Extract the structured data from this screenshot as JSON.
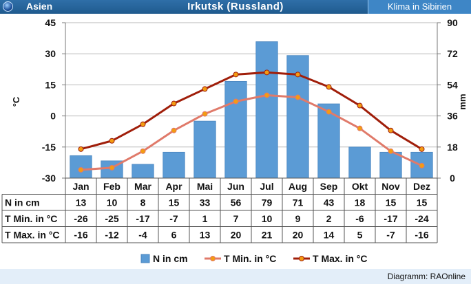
{
  "header": {
    "region": "Asien",
    "title": "Irkutsk (Russland)",
    "link": "Klima in Sibirien"
  },
  "footer": {
    "credit": "Diagramm: RAOnline"
  },
  "colors": {
    "bar": "#5b9bd5",
    "tmin": "#e07a6a",
    "tmax": "#a01e0a",
    "marker": "#f39c12"
  },
  "chart_data": {
    "type": "bar",
    "categories": [
      "Jan",
      "Feb",
      "Mar",
      "Apr",
      "Mai",
      "Jun",
      "Jul",
      "Aug",
      "Sep",
      "Okt",
      "Nov",
      "Dez"
    ],
    "series": [
      {
        "name": "N in cm",
        "type": "bar",
        "axis": "right",
        "values": [
          13,
          10,
          8,
          15,
          33,
          56,
          79,
          71,
          43,
          18,
          15,
          15
        ]
      },
      {
        "name": "T Min. in °C",
        "type": "line",
        "axis": "left",
        "values": [
          -26,
          -25,
          -17,
          -7,
          1,
          7,
          10,
          9,
          2,
          -6,
          -17,
          -24
        ]
      },
      {
        "name": "T Max. in °C",
        "type": "line",
        "axis": "left",
        "values": [
          -16,
          -12,
          -4,
          6,
          13,
          20,
          21,
          20,
          14,
          5,
          -7,
          -16
        ]
      }
    ],
    "ylabel_left": "°C",
    "ylabel_right": "mm",
    "ylim_left": [
      -30,
      45
    ],
    "ylim_right": [
      0,
      90
    ],
    "yticks_left": [
      "45",
      "30",
      "15",
      "0",
      "-15",
      "-30"
    ],
    "yticks_right": [
      "90",
      "72",
      "54",
      "36",
      "18",
      "0"
    ],
    "table_rows": [
      {
        "label": "N in cm",
        "values": [
          "13",
          "10",
          "8",
          "15",
          "33",
          "56",
          "79",
          "71",
          "43",
          "18",
          "15",
          "15"
        ]
      },
      {
        "label": "T Min. in °C",
        "values": [
          "-26",
          "-25",
          "-17",
          "-7",
          "1",
          "7",
          "10",
          "9",
          "2",
          "-6",
          "-17",
          "-24"
        ]
      },
      {
        "label": "T Max. in °C",
        "values": [
          "-16",
          "-12",
          "-4",
          "6",
          "13",
          "20",
          "21",
          "20",
          "14",
          "5",
          "-7",
          "-16"
        ]
      }
    ],
    "legend": [
      "N in cm",
      "T Min. in °C",
      "T Max. in °C"
    ],
    "legend_position": "bottom",
    "grid": true
  }
}
